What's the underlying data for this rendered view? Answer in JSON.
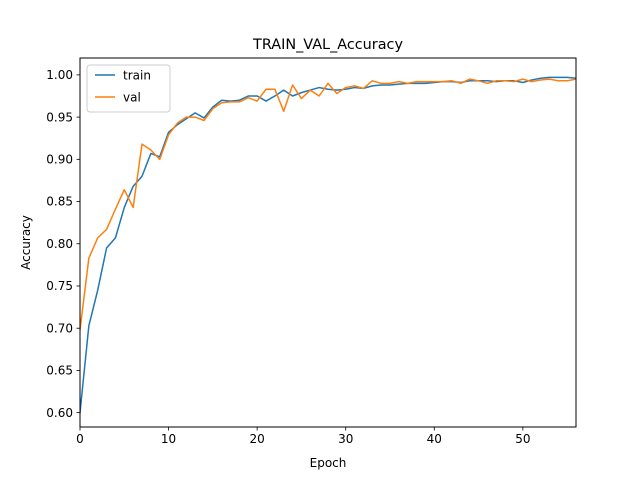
{
  "chart_data": {
    "type": "line",
    "title": "TRAIN_VAL_Accuracy",
    "xlabel": "Epoch",
    "ylabel": "Accuracy",
    "xlim": [
      0,
      56
    ],
    "ylim": [
      0.583,
      1.02
    ],
    "xticks": [
      0,
      10,
      20,
      30,
      40,
      50
    ],
    "yticks": [
      0.6,
      0.65,
      0.7,
      0.75,
      0.8,
      0.85,
      0.9,
      0.95,
      1.0
    ],
    "ytick_labels": [
      "0.60",
      "0.65",
      "0.70",
      "0.75",
      "0.80",
      "0.85",
      "0.90",
      "0.95",
      "1.00"
    ],
    "legend_position": "upper-left",
    "grid": false,
    "series": [
      {
        "name": "train",
        "color": "#1f77b4",
        "x": [
          0,
          1,
          2,
          3,
          4,
          5,
          6,
          7,
          8,
          9,
          10,
          11,
          12,
          13,
          14,
          15,
          16,
          17,
          18,
          19,
          20,
          21,
          22,
          23,
          24,
          25,
          26,
          27,
          28,
          29,
          30,
          31,
          32,
          33,
          34,
          35,
          36,
          37,
          38,
          39,
          40,
          41,
          42,
          43,
          44,
          45,
          46,
          47,
          48,
          49,
          50,
          51,
          52,
          53,
          54,
          55,
          56
        ],
        "values": [
          0.6,
          0.703,
          0.745,
          0.795,
          0.807,
          0.843,
          0.868,
          0.88,
          0.907,
          0.903,
          0.932,
          0.941,
          0.948,
          0.955,
          0.949,
          0.962,
          0.97,
          0.969,
          0.97,
          0.975,
          0.975,
          0.969,
          0.975,
          0.982,
          0.975,
          0.979,
          0.982,
          0.985,
          0.983,
          0.982,
          0.983,
          0.985,
          0.984,
          0.987,
          0.988,
          0.988,
          0.989,
          0.99,
          0.99,
          0.99,
          0.991,
          0.992,
          0.992,
          0.991,
          0.993,
          0.993,
          0.993,
          0.992,
          0.993,
          0.993,
          0.991,
          0.994,
          0.996,
          0.997,
          0.997,
          0.997,
          0.996
        ]
      },
      {
        "name": "val",
        "color": "#ff7f0e",
        "x": [
          0,
          1,
          2,
          3,
          4,
          5,
          6,
          7,
          8,
          9,
          10,
          11,
          12,
          13,
          14,
          15,
          16,
          17,
          18,
          19,
          20,
          21,
          22,
          23,
          24,
          25,
          26,
          27,
          28,
          29,
          30,
          31,
          32,
          33,
          34,
          35,
          36,
          37,
          38,
          39,
          40,
          41,
          42,
          43,
          44,
          45,
          46,
          47,
          48,
          49,
          50,
          51,
          52,
          53,
          54,
          55,
          56
        ],
        "values": [
          0.698,
          0.783,
          0.807,
          0.817,
          0.841,
          0.864,
          0.843,
          0.918,
          0.911,
          0.9,
          0.929,
          0.943,
          0.95,
          0.95,
          0.946,
          0.96,
          0.967,
          0.968,
          0.968,
          0.973,
          0.969,
          0.983,
          0.983,
          0.957,
          0.988,
          0.972,
          0.982,
          0.975,
          0.99,
          0.978,
          0.985,
          0.987,
          0.984,
          0.993,
          0.99,
          0.99,
          0.992,
          0.99,
          0.992,
          0.992,
          0.992,
          0.992,
          0.993,
          0.99,
          0.995,
          0.993,
          0.99,
          0.993,
          0.993,
          0.992,
          0.995,
          0.992,
          0.994,
          0.995,
          0.993,
          0.993,
          0.995
        ]
      }
    ]
  }
}
